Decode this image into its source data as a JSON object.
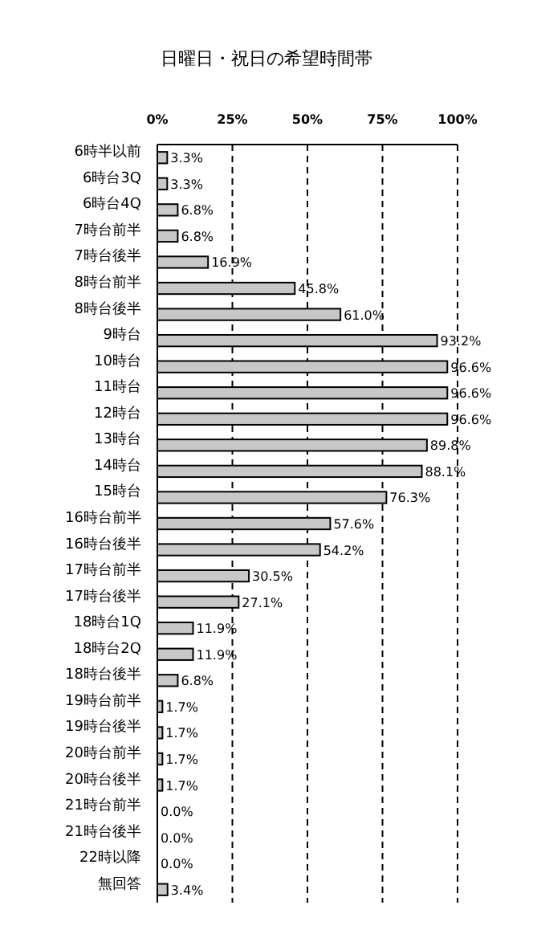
{
  "chart_data": {
    "type": "bar",
    "orientation": "horizontal",
    "title": "日曜日・祝日の希望時間帯",
    "categories": [
      "6時半以前",
      "6時台3Q",
      "6時台4Q",
      "7時台前半",
      "7時台後半",
      "8時台前半",
      "8時台後半",
      "9時台",
      "10時台",
      "11時台",
      "12時台",
      "13時台",
      "14時台",
      "15時台",
      "16時台前半",
      "16時台後半",
      "17時台前半",
      "17時台後半",
      "18時台1Q",
      "18時台2Q",
      "18時台後半",
      "19時台前半",
      "19時台後半",
      "20時台前半",
      "20時台後半",
      "21時台前半",
      "21時台後半",
      "22時以降",
      "無回答"
    ],
    "values": [
      3.3,
      3.3,
      6.8,
      6.8,
      16.9,
      45.8,
      61.0,
      93.2,
      96.6,
      96.6,
      96.6,
      89.8,
      88.1,
      76.3,
      57.6,
      54.2,
      30.5,
      27.1,
      11.9,
      11.9,
      6.8,
      1.7,
      1.7,
      1.7,
      1.7,
      0,
      0,
      0,
      3.4
    ],
    "value_labels": [
      "3.3%",
      "3.3%",
      "6.8%",
      "6.8%",
      "16.9%",
      "45.8%",
      "61.0%",
      "93.2%",
      "96.6%",
      "96.6%",
      "96.6%",
      "89.8%",
      "88.1%",
      "76.3%",
      "57.6%",
      "54.2%",
      "30.5%",
      "27.1%",
      "11.9%",
      "11.9%",
      "6.8%",
      "1.7%",
      "1.7%",
      "1.7%",
      "1.7%",
      "0.0%",
      "0.0%",
      "0.0%",
      "3.4%"
    ],
    "color": "#c8c8c8",
    "xlim": [
      0,
      100
    ],
    "xticks": [
      {
        "value": 0,
        "label": "0%"
      },
      {
        "value": 25,
        "label": "25%"
      },
      {
        "value": 50,
        "label": "50%"
      },
      {
        "value": 75,
        "label": "75%"
      },
      {
        "value": 100,
        "label": "100%"
      }
    ],
    "grid": "x"
  }
}
